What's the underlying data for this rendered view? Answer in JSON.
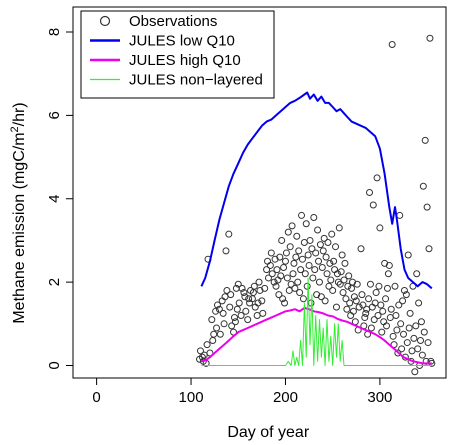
{
  "chart_data": {
    "type": "scatter",
    "xlabel": "Day of year",
    "ylabel_parts": [
      "Methane emission (mgC/m",
      "2",
      "/hr)"
    ],
    "xlim": [
      -25,
      370
    ],
    "ylim": [
      -0.3,
      8.6
    ],
    "xticks": [
      0,
      100,
      200,
      300
    ],
    "yticks": [
      0,
      2,
      4,
      6,
      8
    ],
    "legend_position": "top-left",
    "legend": [
      {
        "label": "Observations",
        "kind": "circle",
        "color": "#333333"
      },
      {
        "label": "JULES low Q10",
        "kind": "line",
        "color": "#0000ee"
      },
      {
        "label": "JULES high Q10",
        "kind": "line",
        "color": "#ee00ee"
      },
      {
        "label": "JULES non−layered",
        "kind": "line",
        "color": "#33ee33"
      }
    ],
    "series": [
      {
        "key": "low_q10",
        "color": "#0000ee",
        "points": [
          [
            111,
            1.9
          ],
          [
            115,
            2.1
          ],
          [
            120,
            2.5
          ],
          [
            125,
            3.0
          ],
          [
            130,
            3.5
          ],
          [
            135,
            3.9
          ],
          [
            140,
            4.3
          ],
          [
            145,
            4.6
          ],
          [
            150,
            4.85
          ],
          [
            155,
            5.1
          ],
          [
            160,
            5.3
          ],
          [
            165,
            5.45
          ],
          [
            170,
            5.6
          ],
          [
            175,
            5.75
          ],
          [
            180,
            5.85
          ],
          [
            185,
            5.9
          ],
          [
            190,
            6.0
          ],
          [
            195,
            6.1
          ],
          [
            200,
            6.2
          ],
          [
            205,
            6.3
          ],
          [
            210,
            6.35
          ],
          [
            215,
            6.42
          ],
          [
            220,
            6.5
          ],
          [
            223,
            6.55
          ],
          [
            226,
            6.4
          ],
          [
            230,
            6.5
          ],
          [
            234,
            6.35
          ],
          [
            238,
            6.45
          ],
          [
            242,
            6.3
          ],
          [
            246,
            6.3
          ],
          [
            250,
            6.2
          ],
          [
            254,
            6.1
          ],
          [
            258,
            6.15
          ],
          [
            262,
            6.05
          ],
          [
            266,
            5.95
          ],
          [
            270,
            5.85
          ],
          [
            275,
            5.8
          ],
          [
            280,
            5.75
          ],
          [
            285,
            5.7
          ],
          [
            290,
            5.6
          ],
          [
            295,
            5.5
          ],
          [
            300,
            5.2
          ],
          [
            305,
            4.6
          ],
          [
            310,
            3.8
          ],
          [
            313,
            3.4
          ],
          [
            316,
            3.8
          ],
          [
            318,
            3.5
          ],
          [
            322,
            2.8
          ],
          [
            326,
            2.3
          ],
          [
            330,
            2.1
          ],
          [
            335,
            2.0
          ],
          [
            340,
            1.9
          ],
          [
            345,
            2.0
          ],
          [
            350,
            1.95
          ],
          [
            355,
            1.85
          ]
        ]
      },
      {
        "key": "high_q10",
        "color": "#ee00ee",
        "points": [
          [
            111,
            0.1
          ],
          [
            115,
            0.12
          ],
          [
            120,
            0.2
          ],
          [
            125,
            0.3
          ],
          [
            130,
            0.4
          ],
          [
            135,
            0.5
          ],
          [
            140,
            0.6
          ],
          [
            145,
            0.7
          ],
          [
            150,
            0.8
          ],
          [
            155,
            0.85
          ],
          [
            160,
            0.9
          ],
          [
            165,
            0.95
          ],
          [
            170,
            1.0
          ],
          [
            175,
            1.05
          ],
          [
            180,
            1.1
          ],
          [
            185,
            1.15
          ],
          [
            190,
            1.2
          ],
          [
            195,
            1.25
          ],
          [
            200,
            1.3
          ],
          [
            205,
            1.32
          ],
          [
            210,
            1.35
          ],
          [
            215,
            1.3
          ],
          [
            220,
            1.38
          ],
          [
            225,
            1.35
          ],
          [
            230,
            1.3
          ],
          [
            235,
            1.28
          ],
          [
            240,
            1.25
          ],
          [
            245,
            1.2
          ],
          [
            250,
            1.18
          ],
          [
            255,
            1.12
          ],
          [
            260,
            1.08
          ],
          [
            265,
            1.05
          ],
          [
            270,
            1.0
          ],
          [
            275,
            0.95
          ],
          [
            280,
            0.9
          ],
          [
            285,
            0.85
          ],
          [
            290,
            0.8
          ],
          [
            295,
            0.75
          ],
          [
            300,
            0.68
          ],
          [
            305,
            0.6
          ],
          [
            310,
            0.5
          ],
          [
            315,
            0.4
          ],
          [
            320,
            0.3
          ],
          [
            325,
            0.2
          ],
          [
            330,
            0.15
          ],
          [
            335,
            0.1
          ],
          [
            340,
            0.08
          ],
          [
            345,
            0.05
          ],
          [
            350,
            0.05
          ],
          [
            355,
            0.05
          ]
        ]
      },
      {
        "key": "non_layered",
        "color": "#33ee33",
        "points": [
          [
            111,
            0.0
          ],
          [
            200,
            0.0
          ],
          [
            203,
            0.1
          ],
          [
            206,
            0.0
          ],
          [
            208,
            0.35
          ],
          [
            210,
            0.0
          ],
          [
            212,
            0.2
          ],
          [
            214,
            0.0
          ],
          [
            216,
            0.6
          ],
          [
            218,
            0.0
          ],
          [
            220,
            1.5
          ],
          [
            222,
            0.2
          ],
          [
            224,
            2.1
          ],
          [
            226,
            0.5
          ],
          [
            228,
            1.7
          ],
          [
            230,
            0.0
          ],
          [
            232,
            1.2
          ],
          [
            234,
            0.1
          ],
          [
            236,
            1.1
          ],
          [
            238,
            0.2
          ],
          [
            240,
            0.9
          ],
          [
            242,
            0.0
          ],
          [
            244,
            1.1
          ],
          [
            246,
            0.1
          ],
          [
            248,
            0.7
          ],
          [
            250,
            0.0
          ],
          [
            252,
            1.0
          ],
          [
            254,
            0.2
          ],
          [
            256,
            1.0
          ],
          [
            258,
            0.1
          ],
          [
            260,
            0.6
          ],
          [
            262,
            0.0
          ],
          [
            264,
            0.0
          ],
          [
            355,
            0.0
          ]
        ]
      }
    ],
    "observations": [
      [
        109,
        0.15
      ],
      [
        110,
        0.35
      ],
      [
        112,
        0.2
      ],
      [
        113,
        0.1
      ],
      [
        114,
        0.25
      ],
      [
        116,
        0.05
      ],
      [
        117,
        0.5
      ],
      [
        118,
        2.55
      ],
      [
        120,
        0.3
      ],
      [
        122,
        1.1
      ],
      [
        123,
        0.6
      ],
      [
        124,
        0.75
      ],
      [
        126,
        1.3
      ],
      [
        127,
        0.9
      ],
      [
        128,
        1.45
      ],
      [
        130,
        1.35
      ],
      [
        131,
        0.75
      ],
      [
        133,
        1.55
      ],
      [
        134,
        1.25
      ],
      [
        135,
        1.0
      ],
      [
        136,
        1.65
      ],
      [
        137,
        2.75
      ],
      [
        138,
        1.8
      ],
      [
        140,
        3.15
      ],
      [
        141,
        1.4
      ],
      [
        142,
        1.7
      ],
      [
        143,
        0.95
      ],
      [
        145,
        0.8
      ],
      [
        146,
        1.15
      ],
      [
        147,
        1.05
      ],
      [
        148,
        1.85
      ],
      [
        149,
        1.35
      ],
      [
        150,
        1.95
      ],
      [
        151,
        1.5
      ],
      [
        153,
        1.2
      ],
      [
        154,
        1.85
      ],
      [
        156,
        1.75
      ],
      [
        157,
        1.65
      ],
      [
        158,
        1.3
      ],
      [
        160,
        1.1
      ],
      [
        161,
        1.6
      ],
      [
        162,
        1.5
      ],
      [
        163,
        1.8
      ],
      [
        165,
        1.6
      ],
      [
        166,
        1.75
      ],
      [
        167,
        1.9
      ],
      [
        168,
        1.4
      ],
      [
        170,
        1.2
      ],
      [
        171,
        1.5
      ],
      [
        172,
        2.0
      ],
      [
        173,
        1.8
      ],
      [
        175,
        1.55
      ],
      [
        176,
        1.25
      ],
      [
        178,
        1.85
      ],
      [
        180,
        2.3
      ],
      [
        181,
        2.5
      ],
      [
        182,
        2.1
      ],
      [
        184,
        2.4
      ],
      [
        185,
        2.7
      ],
      [
        186,
        2.2
      ],
      [
        188,
        2.0
      ],
      [
        189,
        2.55
      ],
      [
        190,
        1.9
      ],
      [
        191,
        2.3
      ],
      [
        192,
        2.05
      ],
      [
        193,
        1.7
      ],
      [
        194,
        2.6
      ],
      [
        195,
        2.15
      ],
      [
        196,
        3.0
      ],
      [
        197,
        1.6
      ],
      [
        198,
        2.35
      ],
      [
        199,
        1.5
      ],
      [
        200,
        2.5
      ],
      [
        201,
        2.7
      ],
      [
        202,
        2.1
      ],
      [
        203,
        3.2
      ],
      [
        204,
        1.8
      ],
      [
        205,
        2.85
      ],
      [
        206,
        1.95
      ],
      [
        207,
        3.35
      ],
      [
        208,
        2.2
      ],
      [
        209,
        2.45
      ],
      [
        210,
        1.85
      ],
      [
        211,
        2.6
      ],
      [
        212,
        3.1
      ],
      [
        213,
        2.0
      ],
      [
        214,
        2.75
      ],
      [
        215,
        1.75
      ],
      [
        216,
        2.3
      ],
      [
        217,
        3.6
      ],
      [
        218,
        2.55
      ],
      [
        219,
        1.6
      ],
      [
        220,
        2.95
      ],
      [
        221,
        2.2
      ],
      [
        222,
        3.4
      ],
      [
        223,
        1.9
      ],
      [
        224,
        2.65
      ],
      [
        225,
        2.4
      ],
      [
        226,
        3.0
      ],
      [
        227,
        1.5
      ],
      [
        228,
        2.8
      ],
      [
        229,
        2.1
      ],
      [
        230,
        3.55
      ],
      [
        231,
        2.3
      ],
      [
        232,
        2.7
      ],
      [
        233,
        1.7
      ],
      [
        234,
        3.25
      ],
      [
        235,
        2.5
      ],
      [
        236,
        2.0
      ],
      [
        237,
        2.9
      ],
      [
        238,
        1.65
      ],
      [
        239,
        2.35
      ],
      [
        240,
        2.75
      ],
      [
        241,
        3.05
      ],
      [
        242,
        1.55
      ],
      [
        243,
        2.6
      ],
      [
        244,
        2.2
      ],
      [
        245,
        2.95
      ],
      [
        246,
        1.9
      ],
      [
        247,
        2.45
      ],
      [
        248,
        2.05
      ],
      [
        249,
        3.15
      ],
      [
        250,
        1.8
      ],
      [
        251,
        2.5
      ],
      [
        252,
        2.3
      ],
      [
        253,
        2.85
      ],
      [
        254,
        1.4
      ],
      [
        255,
        2.2
      ],
      [
        256,
        2.0
      ],
      [
        257,
        3.3
      ],
      [
        258,
        1.95
      ],
      [
        259,
        2.25
      ],
      [
        260,
        2.65
      ],
      [
        261,
        1.75
      ],
      [
        262,
        2.05
      ],
      [
        263,
        2.45
      ],
      [
        264,
        1.6
      ],
      [
        265,
        1.35
      ],
      [
        266,
        1.9
      ],
      [
        267,
        2.15
      ],
      [
        268,
        1.5
      ],
      [
        269,
        1.2
      ],
      [
        270,
        1.85
      ],
      [
        271,
        2.0
      ],
      [
        272,
        1.3
      ],
      [
        273,
        1.65
      ],
      [
        274,
        1.05
      ],
      [
        275,
        1.55
      ],
      [
        276,
        1.95
      ],
      [
        277,
        0.85
      ],
      [
        278,
        1.4
      ],
      [
        280,
        2.8
      ],
      [
        281,
        1.7
      ],
      [
        282,
        1.45
      ],
      [
        283,
        0.95
      ],
      [
        284,
        1.15
      ],
      [
        285,
        1.25
      ],
      [
        286,
        1.35
      ],
      [
        287,
        0.75
      ],
      [
        288,
        1.6
      ],
      [
        289,
        4.15
      ],
      [
        290,
        1.95
      ],
      [
        291,
        0.9
      ],
      [
        292,
        1.4
      ],
      [
        293,
        3.85
      ],
      [
        294,
        1.1
      ],
      [
        295,
        1.5
      ],
      [
        296,
        1.75
      ],
      [
        297,
        4.5
      ],
      [
        298,
        1.2
      ],
      [
        299,
        1.9
      ],
      [
        300,
        3.3
      ],
      [
        301,
        1.45
      ],
      [
        302,
        0.8
      ],
      [
        303,
        1.3
      ],
      [
        304,
        1.05
      ],
      [
        305,
        2.45
      ],
      [
        306,
        1.6
      ],
      [
        307,
        0.95
      ],
      [
        308,
        1.85
      ],
      [
        309,
        2.2
      ],
      [
        310,
        2.4
      ],
      [
        311,
        1.15
      ],
      [
        312,
        1.35
      ],
      [
        313,
        7.7
      ],
      [
        314,
        0.7
      ],
      [
        315,
        0.5
      ],
      [
        316,
        1.9
      ],
      [
        317,
        1.2
      ],
      [
        318,
        0.85
      ],
      [
        319,
        0.3
      ],
      [
        320,
        1.45
      ],
      [
        321,
        3.6
      ],
      [
        322,
        1.0
      ],
      [
        323,
        0.4
      ],
      [
        324,
        1.55
      ],
      [
        325,
        0.75
      ],
      [
        326,
        1.8
      ],
      [
        327,
        0.2
      ],
      [
        328,
        1.7
      ],
      [
        329,
        0.55
      ],
      [
        330,
        2.65
      ],
      [
        331,
        0.9
      ],
      [
        332,
        1.25
      ],
      [
        333,
        0.1
      ],
      [
        334,
        0.35
      ],
      [
        335,
        1.9
      ],
      [
        336,
        0.65
      ],
      [
        337,
        -0.15
      ],
      [
        338,
        0.95
      ],
      [
        339,
        2.2
      ],
      [
        340,
        0.4
      ],
      [
        341,
        1.5
      ],
      [
        342,
        0.0
      ],
      [
        343,
        0.6
      ],
      [
        344,
        1.05
      ],
      [
        345,
        0.25
      ],
      [
        346,
        4.3
      ],
      [
        347,
        0.8
      ],
      [
        348,
        5.4
      ],
      [
        349,
        0.1
      ],
      [
        350,
        3.8
      ],
      [
        351,
        0.55
      ],
      [
        352,
        2.8
      ],
      [
        353,
        7.85
      ],
      [
        354,
        0.1
      ],
      [
        355,
        0.05
      ]
    ]
  }
}
